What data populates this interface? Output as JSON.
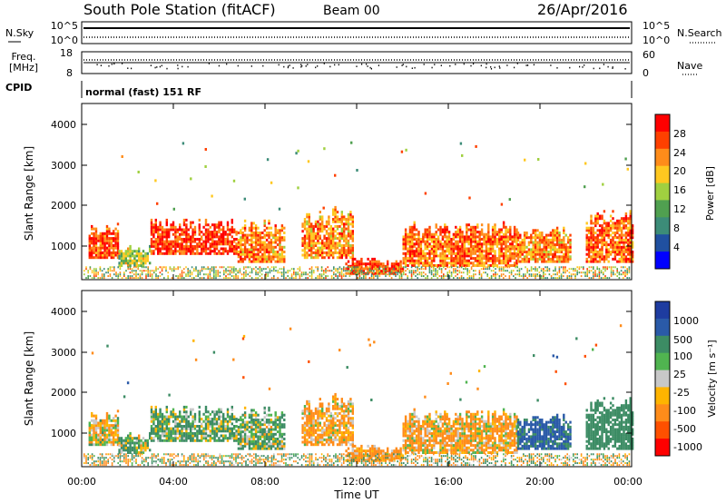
{
  "header": {
    "station": "South Pole Station (fitACF)",
    "beam": "Beam 00",
    "date": "26/Apr/2016"
  },
  "top_panels": {
    "nsky_label": "N.Sky",
    "nsearch_label": "N.Search",
    "nsky_ticks": [
      "10^5",
      "10^0"
    ],
    "nsearch_ticks": [
      "10^5",
      "10^0"
    ],
    "freq_label_line1": "Freq.",
    "freq_label_line2": "[MHz]",
    "freq_ticks": [
      "18",
      "8"
    ],
    "nave_label": "Nave",
    "nave_ticks": [
      "60",
      "0"
    ],
    "cpid_label": "CPID",
    "cpid_text": "normal (fast) 151 RF"
  },
  "axes": {
    "ylabel": "Slant Range [km]",
    "yticks": [
      "4000",
      "3000",
      "2000",
      "1000"
    ],
    "xlabel": "Time UT",
    "xticks": [
      "00:00",
      "04:00",
      "08:00",
      "12:00",
      "16:00",
      "20:00",
      "00:00"
    ]
  },
  "power_colorbar": {
    "label": "Power [dB]",
    "ticks": [
      "28",
      "24",
      "20",
      "16",
      "12",
      "8",
      "4"
    ],
    "colors": [
      "#ff0000",
      "#ff4000",
      "#ff8c1a",
      "#ffc820",
      "#a0d040",
      "#50a050",
      "#3c8c78",
      "#2050a0",
      "#0000ff"
    ]
  },
  "velocity_colorbar": {
    "label": "Velocity [m s⁻¹]",
    "ticks": [
      "1000",
      "500",
      "100",
      "25",
      "-25",
      "-100",
      "-500",
      "-1000"
    ],
    "colors": [
      "#1e3ca0",
      "#2a5aa8",
      "#3c8c64",
      "#50b450",
      "#c8c8c8",
      "#ffb400",
      "#ff8c1a",
      "#ff5000",
      "#ff0000"
    ]
  },
  "chart_data": {
    "type": "heatmap",
    "title": "South Pole Station (fitACF)",
    "xlabel": "Time UT",
    "ylabel": "Slant Range [km]",
    "x_range_hours": [
      0,
      24
    ],
    "y_range_km": [
      180,
      4600
    ],
    "panels": [
      "Power [dB]",
      "Velocity [m s⁻¹]"
    ],
    "echo_regions": [
      {
        "t_start": 0.3,
        "t_end": 1.6,
        "r_low": 700,
        "r_high": 1600,
        "power_db": 26,
        "velocity": -60
      },
      {
        "t_start": 1.6,
        "t_end": 3.0,
        "r_low": 500,
        "r_high": 1000,
        "power_db": 14,
        "velocity": 80
      },
      {
        "t_start": 3.0,
        "t_end": 6.8,
        "r_low": 800,
        "r_high": 1700,
        "power_db": 27,
        "velocity": 120
      },
      {
        "t_start": 6.8,
        "t_end": 8.8,
        "r_low": 600,
        "r_high": 1700,
        "power_db": 22,
        "velocity": 90
      },
      {
        "t_start": 9.6,
        "t_end": 11.8,
        "r_low": 700,
        "r_high": 2000,
        "power_db": 22,
        "velocity": -150
      },
      {
        "t_start": 11.5,
        "t_end": 14.0,
        "r_low": 300,
        "r_high": 700,
        "power_db": 27,
        "velocity": -200
      },
      {
        "t_start": 14.0,
        "t_end": 19.0,
        "r_low": 500,
        "r_high": 1600,
        "power_db": 24,
        "velocity": -120
      },
      {
        "t_start": 19.0,
        "t_end": 21.3,
        "r_low": 600,
        "r_high": 1500,
        "power_db": 22,
        "velocity": 600
      },
      {
        "t_start": 22.0,
        "t_end": 24.0,
        "r_low": 600,
        "r_high": 2000,
        "power_db": 24,
        "velocity": 300
      }
    ]
  }
}
